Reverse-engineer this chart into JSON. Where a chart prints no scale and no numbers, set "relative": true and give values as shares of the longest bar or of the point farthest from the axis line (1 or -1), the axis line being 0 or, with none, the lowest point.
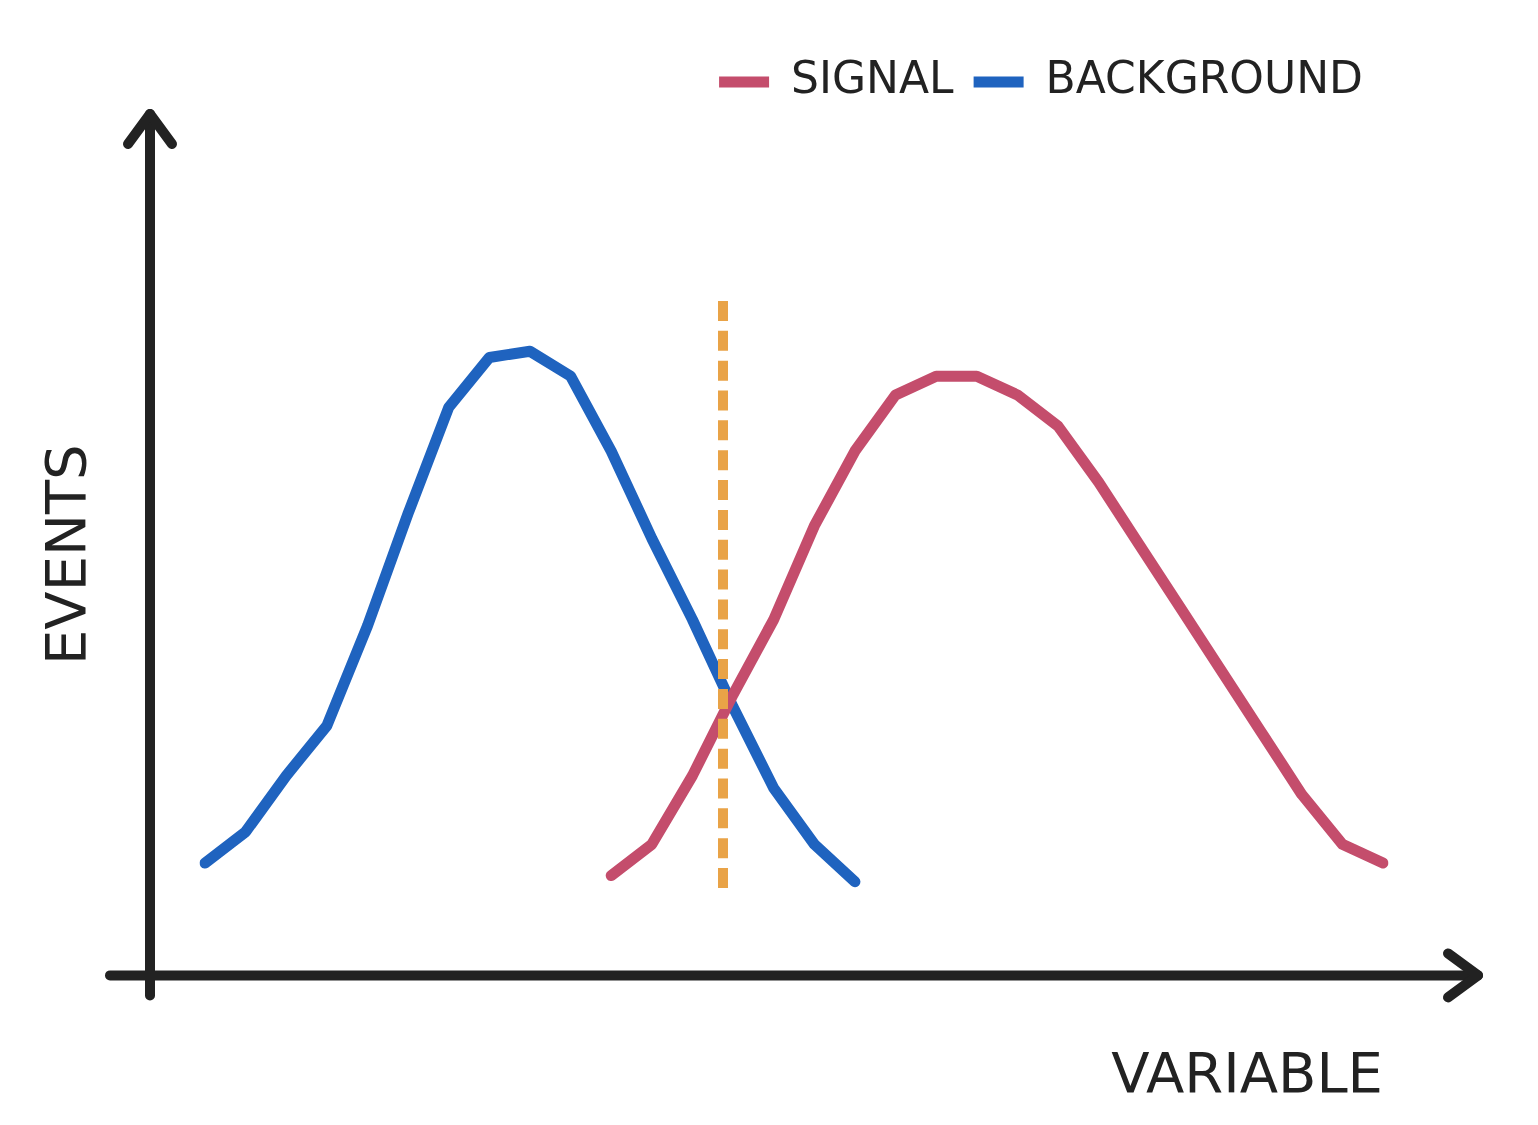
{
  "chart_data": {
    "type": "line",
    "relative": true,
    "xlabel": "VARIABLE",
    "ylabel": "EVENTS",
    "legend": "top right",
    "marker": "none",
    "line_style": "solid",
    "categories": [
      null,
      null,
      null,
      null,
      null,
      null,
      null,
      null,
      null,
      null,
      null,
      null,
      null,
      null,
      null,
      null,
      null,
      null,
      null,
      null,
      null,
      null,
      null,
      null,
      null,
      null,
      null,
      null,
      null,
      null
    ],
    "series": [
      {
        "name": "SIGNAL",
        "color": "#c44d6c",
        "values": [
          null,
          null,
          null,
          null,
          null,
          null,
          null,
          null,
          null,
          null,
          0.16,
          0.21,
          0.32,
          0.45,
          0.57,
          0.72,
          0.84,
          0.93,
          0.96,
          0.96,
          0.93,
          0.88,
          0.79,
          0.69,
          0.59,
          0.49,
          0.39,
          0.29,
          0.21,
          0.18
        ]
      },
      {
        "name": "BACKGROUND",
        "color": "#1f63bf",
        "values": [
          0.18,
          0.23,
          0.32,
          0.4,
          0.56,
          0.74,
          0.91,
          0.99,
          1,
          0.96,
          0.84,
          0.7,
          0.57,
          0.43,
          0.3,
          0.21,
          0.15,
          null,
          null,
          null,
          null,
          null,
          null,
          null,
          null,
          null,
          null,
          null,
          null,
          null
        ]
      }
    ]
  }
}
